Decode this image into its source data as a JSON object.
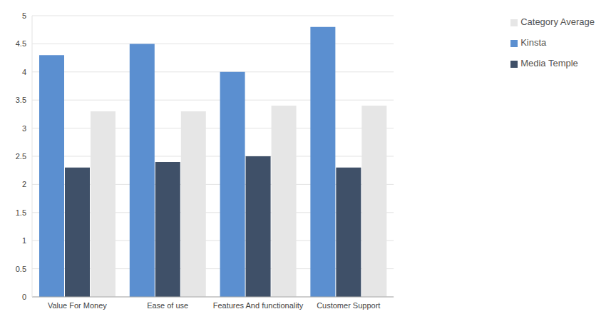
{
  "chart_data": {
    "type": "bar",
    "categories": [
      "Value For Money",
      "Ease of use",
      "Features And functionality",
      "Customer Support"
    ],
    "series": [
      {
        "name": "Kinsta",
        "color": "#5b8fd0",
        "values": [
          4.3,
          4.5,
          4.0,
          4.8
        ]
      },
      {
        "name": "Media Temple",
        "color": "#3f5068",
        "values": [
          2.3,
          2.4,
          2.5,
          2.3
        ]
      },
      {
        "name": "Category Average",
        "color": "#e6e6e6",
        "values": [
          3.3,
          3.3,
          3.4,
          3.4
        ]
      }
    ],
    "ylim": [
      0,
      5
    ],
    "yticks": [
      0,
      0.5,
      1,
      1.5,
      2,
      2.5,
      3,
      3.5,
      4,
      4.5,
      5
    ],
    "grid": true,
    "legend": "top right"
  }
}
